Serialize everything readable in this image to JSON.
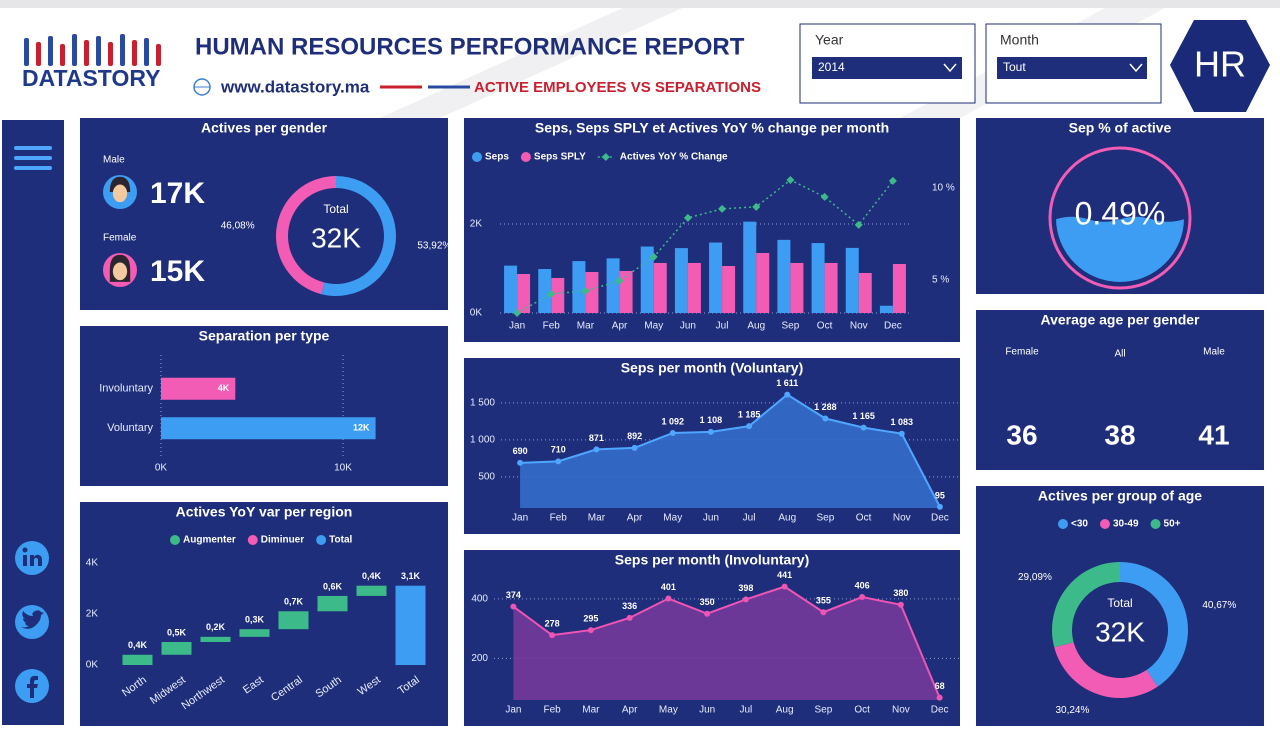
{
  "header": {
    "brand": "DATASTORY",
    "title": "HUMAN RESOURCES PERFORMANCE REPORT",
    "website": "www.datastory.ma",
    "subtitle": "ACTIVE EMPLOYEES VS SEPARATIONS",
    "badge": "HR"
  },
  "filters": [
    {
      "label": "Year",
      "value": "2014"
    },
    {
      "label": "Month",
      "value": "Tout"
    }
  ],
  "average_age": {
    "title": "Average age per gender",
    "items": [
      {
        "label": "Female",
        "value": 36
      },
      {
        "label": "All",
        "value": 38
      },
      {
        "label": "Male",
        "value": 41
      }
    ]
  },
  "chart_data": [
    {
      "type": "donut",
      "title": "Actives per gender",
      "cards": [
        {
          "label": "Male",
          "value": "17K"
        },
        {
          "label": "Female",
          "value": "15K"
        }
      ],
      "values": [
        53.92,
        46.08
      ],
      "value_labels": [
        "53,92%",
        "46,08%"
      ],
      "colors": [
        "#3d9df2",
        "#f25cb4"
      ],
      "center_label": "Total",
      "center_value": "32K"
    },
    {
      "type": "bar",
      "orientation": "horizontal",
      "title": "Separation per type",
      "categories": [
        "Involuntary",
        "Voluntary"
      ],
      "values": [
        4082,
        11790
      ],
      "value_labels": [
        "4K",
        "12K"
      ],
      "colors": [
        "#f25cb4",
        "#3d9df2"
      ],
      "xlim": [
        0,
        15000
      ],
      "xticks": [
        {
          "value": 0,
          "label": "0K"
        },
        {
          "value": 10000,
          "label": "10K"
        }
      ],
      "grid": true
    },
    {
      "type": "combo",
      "title": "Seps, Seps SPLY et Actives YoY % change per month",
      "categories": [
        "Jan",
        "Feb",
        "Mar",
        "Apr",
        "May",
        "Jun",
        "Jul",
        "Aug",
        "Sep",
        "Oct",
        "Nov",
        "Dec"
      ],
      "series": [
        {
          "name": "Seps",
          "kind": "bar",
          "color": "#3d9df2",
          "values": [
            1064,
            988,
            1166,
            1228,
            1493,
            1458,
            1583,
            2052,
            1643,
            1571,
            1463,
            163
          ]
        },
        {
          "name": "Seps SPLY",
          "kind": "bar",
          "color": "#f25cb4",
          "values": [
            876,
            787,
            921,
            944,
            1124,
            1124,
            1056,
            1348,
            1124,
            1124,
            899,
            1101
          ]
        },
        {
          "name": "Actives YoY % Change",
          "kind": "line",
          "axis": "y2",
          "color": "#3dba8a",
          "values": [
            3.2,
            4.24,
            4.4,
            4.95,
            6.25,
            8.37,
            8.86,
            8.97,
            10.43,
            9.51,
            7.99,
            10.38
          ]
        }
      ],
      "ylim": [
        0,
        3100
      ],
      "yticks": [
        {
          "value": 0,
          "label": "0K"
        },
        {
          "value": 2000,
          "label": "2K"
        }
      ],
      "y2lim": [
        3.2,
        10.7
      ],
      "y2ticks": [
        {
          "value": 5,
          "label": "5 %"
        },
        {
          "value": 10,
          "label": "10 %"
        }
      ],
      "grid": true
    },
    {
      "type": "area",
      "title": "Seps per month (Voluntary)",
      "categories": [
        "Jan",
        "Feb",
        "Mar",
        "Apr",
        "May",
        "Jun",
        "Jul",
        "Aug",
        "Sep",
        "Oct",
        "Nov",
        "Dec"
      ],
      "values": [
        690,
        710,
        871,
        892,
        1092,
        1108,
        1185,
        1611,
        1288,
        1165,
        1083,
        95
      ],
      "value_labels": [
        "690",
        "710",
        "871",
        "892",
        "1 092",
        "1 108",
        "1 185",
        "1 611",
        "1 288",
        "1 165",
        "1 083",
        "95"
      ],
      "color": "#3570d0",
      "line_color": "#4fa6ff",
      "ylim": [
        80,
        1700
      ],
      "yticks": [
        500,
        {
          "value": 1000,
          "label": "1 000"
        },
        {
          "value": 1500,
          "label": "1 500"
        }
      ],
      "grid": true
    },
    {
      "type": "area",
      "title": "Seps per month (Involuntary)",
      "categories": [
        "Jan",
        "Feb",
        "Mar",
        "Apr",
        "May",
        "Jun",
        "Jul",
        "Aug",
        "Sep",
        "Oct",
        "Nov",
        "Dec"
      ],
      "values": [
        374,
        278,
        295,
        336,
        401,
        350,
        398,
        441,
        355,
        406,
        380,
        68
      ],
      "color": "#7a3a9e",
      "line_color": "#ee55b4",
      "ylim": [
        60,
        470
      ],
      "yticks": [
        200,
        400
      ],
      "grid": true
    },
    {
      "type": "waterfall",
      "title": "Actives YoY var per region",
      "legend": [
        {
          "name": "Augmenter",
          "color": "#3dba8a"
        },
        {
          "name": "Diminuer",
          "color": "#f25cb4"
        },
        {
          "name": "Total",
          "color": "#3d9df2"
        }
      ],
      "categories": [
        "North",
        "Midwest",
        "Northwest",
        "East",
        "Central",
        "South",
        "West",
        "Total"
      ],
      "values": [
        400,
        500,
        200,
        300,
        700,
        600,
        400,
        3100
      ],
      "value_labels": [
        "0,4K",
        "0,5K",
        "0,2K",
        "0,3K",
        "0,7K",
        "0,6K",
        "0,4K",
        "3,1K"
      ],
      "total_last": true,
      "ylim": [
        0,
        4300
      ],
      "yticks": [
        {
          "value": 0,
          "label": "0K"
        },
        {
          "value": 2000,
          "label": "2K"
        },
        {
          "value": 4000,
          "label": "4K"
        }
      ]
    },
    {
      "type": "gauge",
      "title": "Sep % of active",
      "values": [
        0.49
      ],
      "value_labels": [
        "0.49%"
      ],
      "ylim": [
        0,
        1
      ],
      "color": "#3d9df2",
      "ring_color": "#f25cb4"
    },
    {
      "type": "donut",
      "title": "Actives per group of age",
      "categories": [
        "<30",
        "30-49",
        "50+"
      ],
      "values": [
        40.67,
        30.24,
        29.09
      ],
      "value_labels": [
        "40,67%",
        "30,24%",
        "29,09%"
      ],
      "colors": [
        "#3d9df2",
        "#f25cb4",
        "#3dba8a"
      ],
      "center_label": "Total",
      "center_value": "32K"
    }
  ]
}
